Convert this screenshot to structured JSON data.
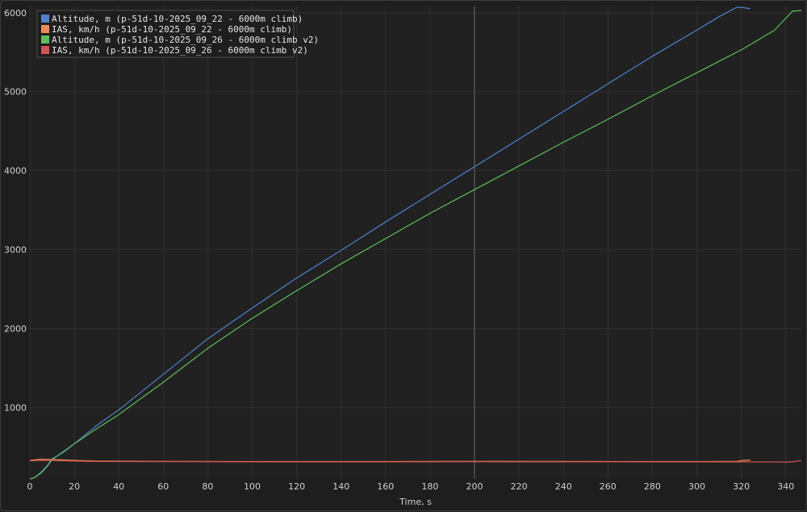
{
  "chart_data": {
    "type": "line",
    "xlabel": "Time, s",
    "ylabel": "",
    "xlim": [
      0,
      347
    ],
    "ylim": [
      95,
      6080
    ],
    "x_ticks": [
      0,
      20,
      40,
      60,
      80,
      100,
      120,
      140,
      160,
      180,
      200,
      220,
      240,
      260,
      280,
      300,
      320,
      340
    ],
    "y_ticks": [
      1000,
      2000,
      3000,
      4000,
      5000,
      6000
    ],
    "grid": true,
    "legend_position": "top-left",
    "cursor_x": 200,
    "colors": {
      "background": "#212121",
      "grid": "#2f2f2f",
      "cursor": "#6a6a6a"
    },
    "series": [
      {
        "name": "Altitude, m (p-51d-10-2025_09_22 - 6000m climb)",
        "color": "#4f81d0",
        "points": [
          [
            0,
            95
          ],
          [
            2,
            110
          ],
          [
            5,
            180
          ],
          [
            8,
            270
          ],
          [
            10,
            350
          ],
          [
            15,
            430
          ],
          [
            20,
            540
          ],
          [
            30,
            770
          ],
          [
            40,
            970
          ],
          [
            60,
            1420
          ],
          [
            80,
            1870
          ],
          [
            100,
            2260
          ],
          [
            120,
            2640
          ],
          [
            140,
            2990
          ],
          [
            160,
            3350
          ],
          [
            180,
            3700
          ],
          [
            200,
            4050
          ],
          [
            220,
            4400
          ],
          [
            240,
            4750
          ],
          [
            260,
            5100
          ],
          [
            280,
            5450
          ],
          [
            300,
            5780
          ],
          [
            310,
            5950
          ],
          [
            318,
            6070
          ],
          [
            320,
            6070
          ],
          [
            324,
            6050
          ]
        ]
      },
      {
        "name": "IAS, km/h (p-51d-10-2025_09_22 - 6000m climb)",
        "color": "#ee8a55",
        "points": [
          [
            0,
            330
          ],
          [
            5,
            345
          ],
          [
            10,
            340
          ],
          [
            20,
            330
          ],
          [
            30,
            322
          ],
          [
            60,
            318
          ],
          [
            100,
            315
          ],
          [
            150,
            315
          ],
          [
            200,
            318
          ],
          [
            250,
            316
          ],
          [
            300,
            315
          ],
          [
            318,
            318
          ],
          [
            321,
            330
          ],
          [
            324,
            335
          ]
        ]
      },
      {
        "name": "Altitude, m (p-51d-10-2025_09_26 - 6000m climb v2)",
        "color": "#5dbd5d",
        "points": [
          [
            0,
            95
          ],
          [
            2,
            110
          ],
          [
            5,
            170
          ],
          [
            8,
            260
          ],
          [
            10,
            340
          ],
          [
            15,
            440
          ],
          [
            20,
            540
          ],
          [
            30,
            730
          ],
          [
            40,
            910
          ],
          [
            60,
            1320
          ],
          [
            80,
            1750
          ],
          [
            100,
            2130
          ],
          [
            120,
            2480
          ],
          [
            140,
            2820
          ],
          [
            160,
            3140
          ],
          [
            180,
            3460
          ],
          [
            200,
            3760
          ],
          [
            220,
            4060
          ],
          [
            240,
            4360
          ],
          [
            260,
            4650
          ],
          [
            280,
            4950
          ],
          [
            300,
            5240
          ],
          [
            320,
            5530
          ],
          [
            335,
            5780
          ],
          [
            343,
            6020
          ],
          [
            347,
            6030
          ]
        ]
      },
      {
        "name": "IAS, km/h (p-51d-10-2025_09_26 - 6000m climb v2)",
        "color": "#cd5555",
        "points": [
          [
            0,
            325
          ],
          [
            5,
            330
          ],
          [
            10,
            328
          ],
          [
            20,
            322
          ],
          [
            30,
            316
          ],
          [
            60,
            315
          ],
          [
            100,
            312
          ],
          [
            150,
            310
          ],
          [
            200,
            313
          ],
          [
            250,
            312
          ],
          [
            300,
            311
          ],
          [
            320,
            310
          ],
          [
            335,
            310
          ],
          [
            340,
            308
          ],
          [
            343,
            310
          ],
          [
            347,
            330
          ]
        ]
      }
    ]
  }
}
